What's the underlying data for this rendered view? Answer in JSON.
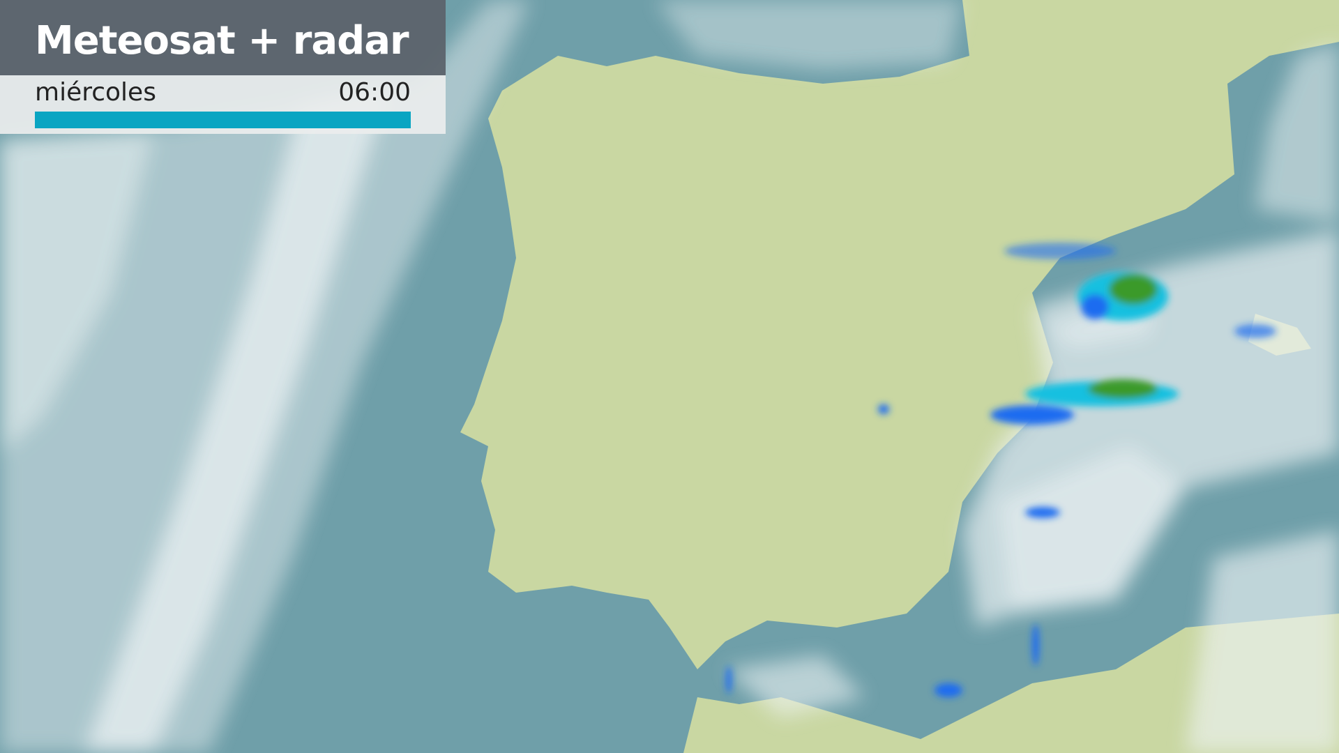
{
  "header": {
    "title": "Meteosat + radar",
    "day": "miércoles",
    "time": "06:00"
  },
  "timeline": {
    "progress_percent": 100
  },
  "colors": {
    "sea": "#6f9fa9",
    "land": "#c8d6a0",
    "cloud": "#eef3f4",
    "title_bg": "#5c636c",
    "progress": "#0aa5c2",
    "radar_light": "#1e6cf0",
    "radar_mid": "#18c0e0",
    "radar_heavy": "#3a9a2a"
  }
}
